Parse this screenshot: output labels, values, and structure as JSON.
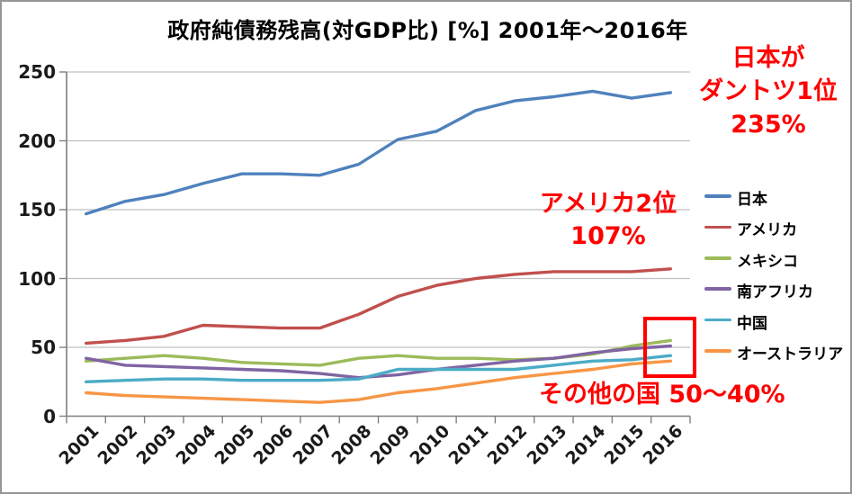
{
  "chart_data": {
    "type": "line",
    "title": "政府純債務残高(対GDP比) [%] 2001年～2016年",
    "categories": [
      "2001",
      "2002",
      "2003",
      "2004",
      "2005",
      "2006",
      "2007",
      "2008",
      "2009",
      "2010",
      "2011",
      "2012",
      "2013",
      "2014",
      "2015",
      "2016"
    ],
    "series": [
      {
        "name": "日本",
        "color": "#4F81BD",
        "values": [
          147,
          156,
          161,
          169,
          176,
          176,
          175,
          183,
          201,
          207,
          222,
          229,
          232,
          236,
          231,
          235
        ]
      },
      {
        "name": "アメリカ",
        "color": "#C0504D",
        "values": [
          53,
          55,
          58,
          66,
          65,
          64,
          64,
          74,
          87,
          95,
          100,
          103,
          105,
          105,
          105,
          107
        ]
      },
      {
        "name": "メキシコ",
        "color": "#9BBB59",
        "values": [
          40,
          42,
          44,
          42,
          39,
          38,
          37,
          42,
          44,
          42,
          42,
          41,
          42,
          45,
          51,
          55
        ]
      },
      {
        "name": "南アフリカ",
        "color": "#8064A2",
        "values": [
          42,
          37,
          36,
          35,
          34,
          33,
          31,
          28,
          30,
          34,
          37,
          40,
          42,
          46,
          49,
          51
        ]
      },
      {
        "name": "中国",
        "color": "#4BACC6",
        "values": [
          25,
          26,
          27,
          27,
          26,
          26,
          26,
          27,
          34,
          34,
          34,
          34,
          37,
          40,
          41,
          44
        ]
      },
      {
        "name": "オーストラリア",
        "color": "#F79646",
        "values": [
          17,
          15,
          14,
          13,
          12,
          11,
          10,
          12,
          17,
          20,
          24,
          28,
          31,
          34,
          38,
          40
        ]
      }
    ],
    "xlabel": "",
    "ylabel": "",
    "y_ticks": [
      0,
      50,
      100,
      150,
      200,
      250
    ],
    "ylim": [
      0,
      250
    ],
    "grid": true,
    "legend_position": "right"
  },
  "annotations": {
    "japan": {
      "text": "日本が\nダントツ1位\n235%",
      "color": "#FF0000"
    },
    "usa": {
      "text": "アメリカ2位\n107%",
      "color": "#FF0000"
    },
    "others": {
      "text": "その他の国 50～40%",
      "color": "#FF0000"
    }
  },
  "highlight": {
    "purpose": "box around 2016 endpoints of other countries",
    "color": "#FF0000"
  }
}
